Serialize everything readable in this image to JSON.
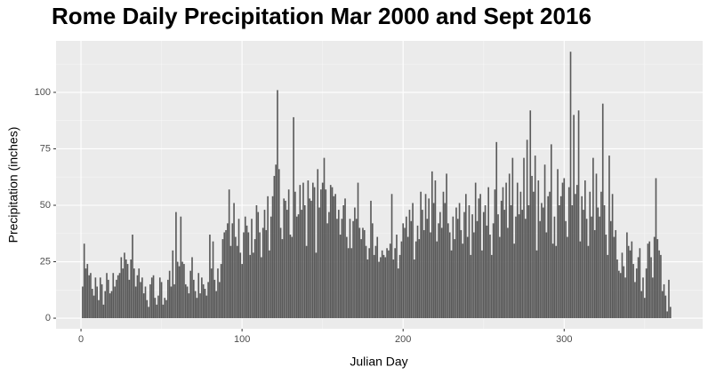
{
  "chart_data": {
    "type": "bar",
    "title": "Rome Daily Precipitation Mar 2000 and Sept 2016",
    "x_label": "Julian Day",
    "y_label": "Precipitation (inches)",
    "color": "#595959",
    "grid": true,
    "xlim": [
      -15.5,
      386
    ],
    "ylim": [
      -4.7,
      122.8
    ],
    "xticks": [
      0,
      100,
      200,
      300
    ],
    "yticks": [
      0,
      25,
      50,
      75,
      100
    ],
    "x": [
      1,
      2,
      3,
      4,
      5,
      6,
      7,
      8,
      9,
      10,
      11,
      12,
      13,
      14,
      15,
      16,
      17,
      18,
      19,
      20,
      21,
      22,
      23,
      24,
      25,
      26,
      27,
      28,
      29,
      30,
      31,
      32,
      33,
      34,
      35,
      36,
      37,
      38,
      39,
      40,
      41,
      42,
      43,
      44,
      45,
      46,
      47,
      48,
      49,
      50,
      51,
      52,
      53,
      54,
      55,
      56,
      57,
      58,
      59,
      60,
      61,
      62,
      63,
      64,
      65,
      66,
      67,
      68,
      69,
      70,
      71,
      72,
      73,
      74,
      75,
      76,
      77,
      78,
      79,
      80,
      81,
      82,
      83,
      84,
      85,
      86,
      87,
      88,
      89,
      90,
      91,
      92,
      93,
      94,
      95,
      96,
      97,
      98,
      99,
      100,
      101,
      102,
      103,
      104,
      105,
      106,
      107,
      108,
      109,
      110,
      111,
      112,
      113,
      114,
      115,
      116,
      117,
      118,
      119,
      120,
      121,
      122,
      123,
      124,
      125,
      126,
      127,
      128,
      129,
      130,
      131,
      132,
      133,
      134,
      135,
      136,
      137,
      138,
      139,
      140,
      141,
      142,
      143,
      144,
      145,
      146,
      147,
      148,
      149,
      150,
      151,
      152,
      153,
      154,
      155,
      156,
      157,
      158,
      159,
      160,
      161,
      162,
      163,
      164,
      165,
      166,
      167,
      168,
      169,
      170,
      171,
      172,
      173,
      174,
      175,
      176,
      177,
      178,
      179,
      180,
      181,
      182,
      183,
      184,
      185,
      186,
      187,
      188,
      189,
      190,
      191,
      192,
      193,
      194,
      195,
      196,
      197,
      198,
      199,
      200,
      201,
      202,
      203,
      204,
      205,
      206,
      207,
      208,
      209,
      210,
      211,
      212,
      213,
      214,
      215,
      216,
      217,
      218,
      219,
      220,
      221,
      222,
      223,
      224,
      225,
      226,
      227,
      228,
      229,
      230,
      231,
      232,
      233,
      234,
      235,
      236,
      237,
      238,
      239,
      240,
      241,
      242,
      243,
      244,
      245,
      246,
      247,
      248,
      249,
      250,
      251,
      252,
      253,
      254,
      255,
      256,
      257,
      258,
      259,
      260,
      261,
      262,
      263,
      264,
      265,
      266,
      267,
      268,
      269,
      270,
      271,
      272,
      273,
      274,
      275,
      276,
      277,
      278,
      279,
      280,
      281,
      282,
      283,
      284,
      285,
      286,
      287,
      288,
      289,
      290,
      291,
      292,
      293,
      294,
      295,
      296,
      297,
      298,
      299,
      300,
      301,
      302,
      303,
      304,
      305,
      306,
      307,
      308,
      309,
      310,
      311,
      312,
      313,
      314,
      315,
      316,
      317,
      318,
      319,
      320,
      321,
      322,
      323,
      324,
      325,
      326,
      327,
      328,
      329,
      330,
      331,
      332,
      333,
      334,
      335,
      336,
      337,
      338,
      339,
      340,
      341,
      342,
      343,
      344,
      345,
      346,
      347,
      348,
      349,
      350,
      351,
      352,
      353,
      354,
      355,
      356,
      357,
      358,
      359,
      360,
      361,
      362,
      363,
      364,
      365,
      366
    ],
    "values": [
      14,
      33,
      22,
      24,
      19,
      20,
      13,
      10,
      18,
      14,
      8,
      18,
      15,
      6,
      12,
      20,
      17,
      11,
      12,
      20,
      14,
      17,
      19,
      20,
      27,
      22,
      29,
      26,
      24,
      17,
      26,
      37,
      22,
      14,
      19,
      22,
      16,
      18,
      11,
      14,
      8,
      5,
      15,
      18,
      19,
      9,
      6,
      10,
      18,
      16,
      6,
      9,
      8,
      17,
      21,
      14,
      30,
      15,
      47,
      25,
      23,
      45,
      25,
      24,
      15,
      14,
      11,
      21,
      27,
      17,
      12,
      9,
      20,
      11,
      18,
      15,
      13,
      10,
      16,
      37,
      22,
      34,
      17,
      12,
      22,
      16,
      24,
      35,
      38,
      39,
      42,
      57,
      32,
      42,
      51,
      36,
      32,
      44,
      29,
      24,
      38,
      45,
      41,
      38,
      28,
      44,
      29,
      35,
      50,
      47,
      38,
      27,
      40,
      48,
      39,
      54,
      30,
      45,
      54,
      63,
      68,
      101,
      66,
      40,
      35,
      53,
      52,
      48,
      57,
      37,
      36,
      89,
      56,
      45,
      46,
      59,
      48,
      60,
      50,
      32,
      61,
      53,
      52,
      60,
      58,
      29,
      66,
      49,
      57,
      60,
      71,
      57,
      42,
      47,
      59,
      58,
      54,
      55,
      44,
      48,
      37,
      44,
      50,
      53,
      36,
      31,
      44,
      31,
      43,
      49,
      44,
      60,
      40,
      35,
      40,
      39,
      32,
      26,
      31,
      52,
      42,
      28,
      32,
      36,
      25,
      27,
      30,
      28,
      27,
      31,
      30,
      33,
      55,
      26,
      31,
      37,
      22,
      28,
      34,
      42,
      40,
      45,
      36,
      48,
      43,
      51,
      26,
      34,
      41,
      35,
      56,
      48,
      39,
      55,
      44,
      53,
      38,
      65,
      51,
      61,
      34,
      42,
      47,
      40,
      56,
      51,
      64,
      42,
      38,
      30,
      45,
      35,
      49,
      44,
      51,
      39,
      33,
      47,
      55,
      36,
      50,
      28,
      46,
      38,
      60,
      43,
      53,
      55,
      30,
      47,
      50,
      41,
      58,
      37,
      28,
      42,
      57,
      78,
      46,
      36,
      52,
      58,
      48,
      60,
      40,
      64,
      50,
      71,
      33,
      45,
      60,
      46,
      56,
      48,
      71,
      44,
      79,
      50,
      92,
      63,
      56,
      72,
      30,
      61,
      43,
      51,
      49,
      68,
      38,
      54,
      56,
      77,
      33,
      45,
      32,
      66,
      50,
      54,
      60,
      62,
      43,
      36,
      58,
      118,
      50,
      90,
      55,
      59,
      92,
      34,
      54,
      48,
      61,
      44,
      32,
      56,
      45,
      71,
      39,
      64,
      49,
      45,
      56,
      95,
      50,
      37,
      28,
      72,
      43,
      55,
      36,
      39,
      26,
      21,
      20,
      29,
      23,
      18,
      38,
      32,
      30,
      34,
      24,
      16,
      22,
      27,
      31,
      12,
      18,
      9,
      22,
      33,
      34,
      27,
      18,
      36,
      62,
      35,
      30,
      28,
      12,
      15,
      10,
      3,
      17,
      5
    ]
  }
}
